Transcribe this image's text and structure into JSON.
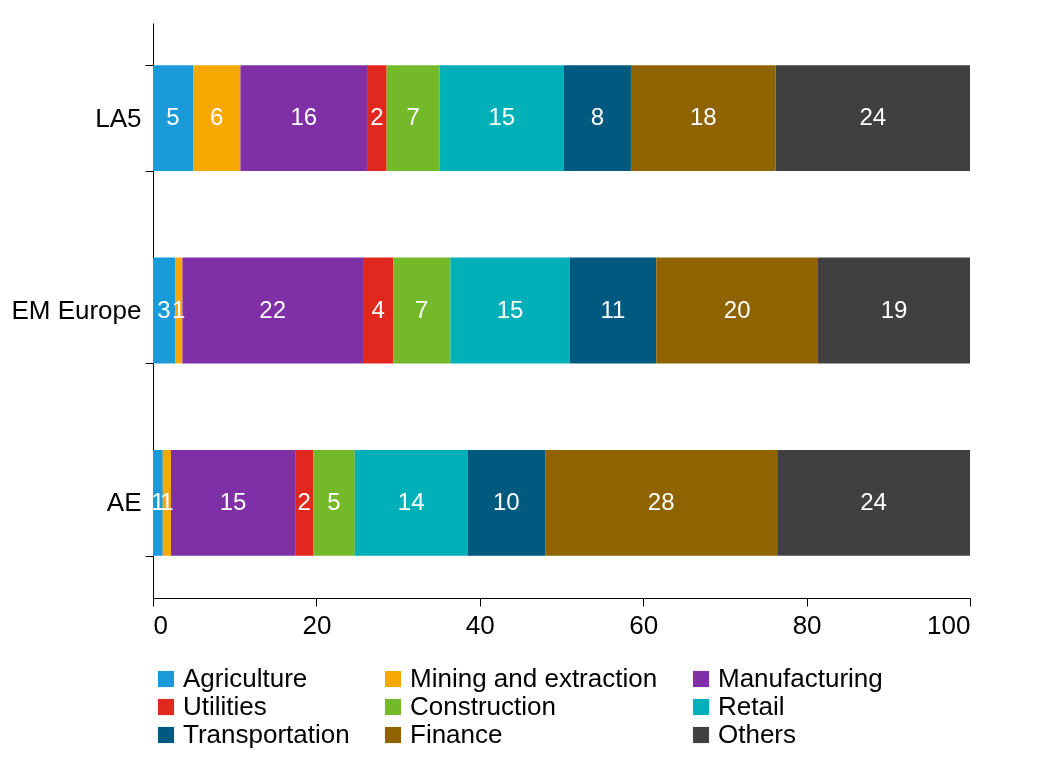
{
  "chart_data": {
    "type": "bar",
    "orientation": "horizontal",
    "stacked": true,
    "categories": [
      "LA5",
      "EM Europe",
      "AE"
    ],
    "xlim": [
      0,
      100
    ],
    "xticks": [
      0,
      20,
      40,
      60,
      80,
      100
    ],
    "grid": false,
    "legend": "bottom",
    "series": [
      {
        "name": "Agriculture",
        "color": "#1a9ad6",
        "values": [
          4.9,
          2.7,
          1.2
        ],
        "value_labels": [
          "5",
          "3",
          "1"
        ]
      },
      {
        "name": "Mining and extraction",
        "color": "#f5a800",
        "values": [
          5.8,
          0.9,
          1.0
        ],
        "value_labels": [
          "6",
          "1",
          "1"
        ]
      },
      {
        "name": "Manufacturing",
        "color": "#7f30a6",
        "values": [
          15.5,
          22.1,
          15.2
        ],
        "value_labels": [
          "16",
          "22",
          "15"
        ]
      },
      {
        "name": "Utilities",
        "color": "#e0281e",
        "values": [
          2.4,
          3.7,
          2.2
        ],
        "value_labels": [
          "2",
          "4",
          "2"
        ]
      },
      {
        "name": "Construction",
        "color": "#74b929",
        "values": [
          6.5,
          7.0,
          5.1
        ],
        "value_labels": [
          "7",
          "7",
          "5"
        ]
      },
      {
        "name": "Retail",
        "color": "#00b0b9",
        "values": [
          15.2,
          14.6,
          13.8
        ],
        "value_labels": [
          "15",
          "15",
          "14"
        ]
      },
      {
        "name": "Transportation",
        "color": "#005a80",
        "values": [
          8.2,
          10.6,
          9.5
        ],
        "value_labels": [
          "8",
          "11",
          "10"
        ]
      },
      {
        "name": "Finance",
        "color": "#8f6400",
        "values": [
          17.7,
          19.8,
          28.4
        ],
        "value_labels": [
          "18",
          "20",
          "28"
        ]
      },
      {
        "name": "Others",
        "color": "#404040",
        "values": [
          23.8,
          18.6,
          23.6
        ],
        "value_labels": [
          "24",
          "19",
          "24"
        ]
      }
    ]
  }
}
